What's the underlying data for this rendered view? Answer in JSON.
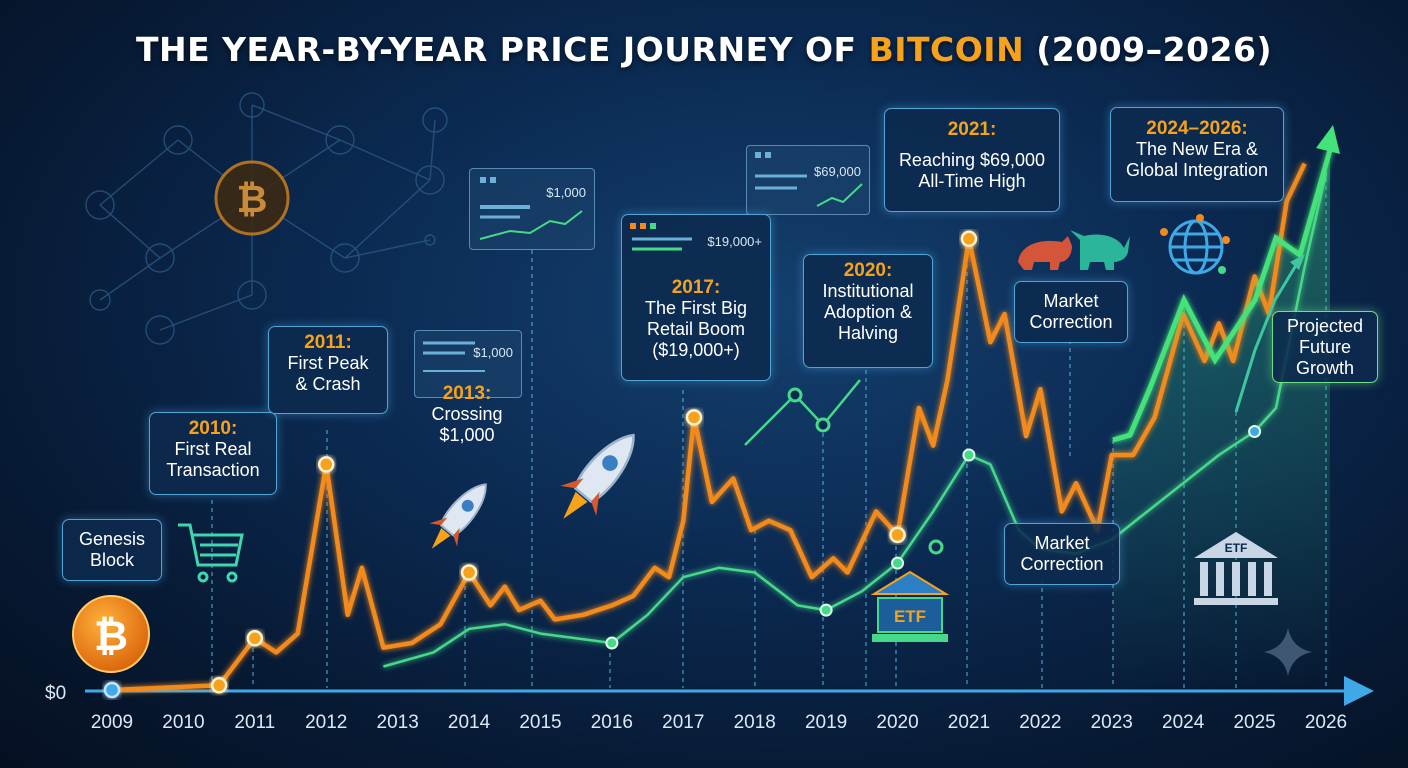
{
  "title": {
    "prefix": "THE YEAR-BY-YEAR PRICE JOURNEY OF ",
    "highlight": "BITCOIN",
    "suffix": " (2009–2026)"
  },
  "axis": {
    "zero_label": "$0"
  },
  "chart_data": {
    "type": "line",
    "xlabel": "",
    "ylabel": "",
    "xlim": [
      2009,
      2026
    ],
    "categories": [
      "2009",
      "2010",
      "2011",
      "2012",
      "2013",
      "2014",
      "2015",
      "2016",
      "2017",
      "2018",
      "2019",
      "2020",
      "2021",
      "2022",
      "2023",
      "2024",
      "2025",
      "2026"
    ],
    "series": [
      {
        "color": "#f28a1e",
        "points": [
          [
            2009,
            0
          ],
          [
            2010.5,
            0.5
          ],
          [
            2011,
            5.5
          ],
          [
            2011.3,
            4
          ],
          [
            2011.6,
            6
          ],
          [
            2012,
            24
          ],
          [
            2012.3,
            8
          ],
          [
            2012.5,
            13
          ],
          [
            2012.8,
            4.5
          ],
          [
            2013.2,
            5
          ],
          [
            2013.6,
            7
          ],
          [
            2014,
            12.5
          ],
          [
            2014.3,
            9
          ],
          [
            2014.5,
            11
          ],
          [
            2014.7,
            8.5
          ],
          [
            2015,
            9.5
          ],
          [
            2015.2,
            7.5
          ],
          [
            2015.6,
            8
          ],
          [
            2016,
            9
          ],
          [
            2016.3,
            10
          ],
          [
            2016.6,
            13
          ],
          [
            2016.8,
            12
          ],
          [
            2017,
            18
          ],
          [
            2017.15,
            29
          ],
          [
            2017.4,
            20
          ],
          [
            2017.7,
            22.5
          ],
          [
            2017.95,
            17
          ],
          [
            2018.2,
            18
          ],
          [
            2018.5,
            17
          ],
          [
            2018.8,
            12
          ],
          [
            2019.1,
            14
          ],
          [
            2019.3,
            12.5
          ],
          [
            2019.7,
            19
          ],
          [
            2020,
            16.5
          ],
          [
            2020.3,
            30
          ],
          [
            2020.5,
            26
          ],
          [
            2020.7,
            33
          ],
          [
            2021,
            48
          ],
          [
            2021.3,
            37
          ],
          [
            2021.5,
            40
          ],
          [
            2021.8,
            27
          ],
          [
            2022,
            32
          ],
          [
            2022.3,
            19
          ],
          [
            2022.5,
            22
          ],
          [
            2022.8,
            17
          ],
          [
            2023,
            25
          ],
          [
            2023.3,
            25
          ],
          [
            2023.6,
            29
          ],
          [
            2024,
            40
          ],
          [
            2024.3,
            35
          ],
          [
            2024.5,
            39
          ],
          [
            2024.7,
            35
          ],
          [
            2025,
            44
          ],
          [
            2025.2,
            40
          ],
          [
            2025.45,
            52
          ],
          [
            2025.7,
            56
          ]
        ]
      },
      {
        "color": "#46d98a",
        "points": [
          [
            2012.8,
            2.5
          ],
          [
            2013.5,
            4
          ],
          [
            2014,
            6.5
          ],
          [
            2014.5,
            7
          ],
          [
            2015,
            6
          ],
          [
            2016,
            5
          ],
          [
            2016.5,
            8
          ],
          [
            2017,
            12
          ],
          [
            2017.5,
            13
          ],
          [
            2018,
            12.5
          ],
          [
            2018.6,
            9
          ],
          [
            2019,
            8.5
          ],
          [
            2019.5,
            10.5
          ],
          [
            2020,
            13.5
          ],
          [
            2020.5,
            19
          ],
          [
            2021,
            25
          ],
          [
            2021.3,
            24
          ],
          [
            2021.7,
            17
          ],
          [
            2022,
            15
          ],
          [
            2022.5,
            14.5
          ],
          [
            2023,
            16
          ],
          [
            2023.5,
            19
          ],
          [
            2024,
            22
          ],
          [
            2024.5,
            25
          ],
          [
            2025,
            27.5
          ],
          [
            2025.3,
            30
          ],
          [
            2025.7,
            45
          ],
          [
            2026,
            55
          ]
        ]
      }
    ]
  },
  "annotations": [
    {
      "year": "2010:",
      "lines": [
        "First Real",
        "Transaction"
      ]
    },
    {
      "year": "2011:",
      "lines": [
        "First Peak",
        "& Crash"
      ]
    },
    {
      "year": "2013:",
      "lines": [
        "Crossing",
        "$1,000"
      ]
    },
    {
      "year": "2017:",
      "lines": [
        "The First Big",
        "Retail Boom",
        "($19,000+)"
      ]
    },
    {
      "year": "2020:",
      "lines": [
        "Institutional",
        "Adoption &",
        "Halving"
      ]
    },
    {
      "year": "2021:",
      "lines": [
        "Reaching $69,000",
        "All-Time High"
      ]
    },
    {
      "year": "2024–2026:",
      "lines": [
        "The New Era &",
        "Global Integration"
      ]
    }
  ],
  "labels": {
    "genesis": [
      "Genesis",
      "Block"
    ],
    "correction_top": [
      "Market",
      "Correction"
    ],
    "correction_bottom": [
      "Market",
      "Correction"
    ],
    "projected": [
      "Projected",
      "Future",
      "Growth"
    ]
  },
  "panels": {
    "p1": "$1,000",
    "p2": "$1,000",
    "p3": "$19,000+",
    "p4": "$69,000"
  },
  "icons": {
    "etf_label": "ETF",
    "bitcoin_symbol": "₿"
  },
  "colors": {
    "orange": "#f28a1e",
    "green": "#46d98a",
    "blue": "#3fa9e8",
    "background": "#0b2a52"
  }
}
